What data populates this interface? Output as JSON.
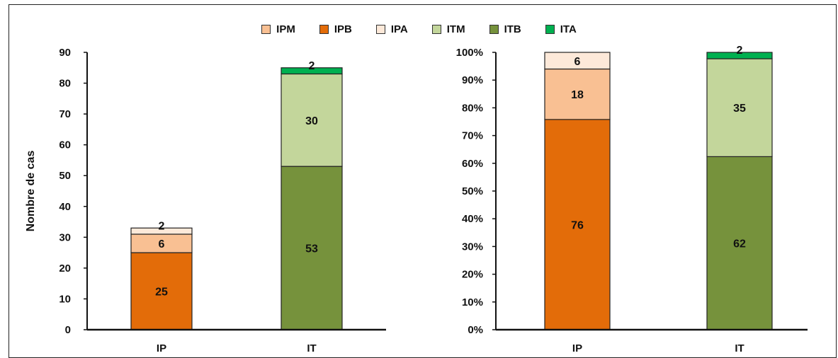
{
  "chart_data": [
    {
      "type": "bar",
      "stacked": true,
      "ylabel": "Nombre de cas",
      "ylim": [
        0,
        90
      ],
      "yticks": [
        "0",
        "10",
        "20",
        "30",
        "40",
        "50",
        "60",
        "70",
        "80",
        "90"
      ],
      "categories": [
        "IP",
        "IT"
      ],
      "series": [
        {
          "name": "IPB",
          "values": [
            25,
            0
          ],
          "labels": [
            "25",
            ""
          ]
        },
        {
          "name": "IPM",
          "values": [
            6,
            0
          ],
          "labels": [
            "6",
            ""
          ]
        },
        {
          "name": "IPA",
          "values": [
            2,
            0
          ],
          "labels": [
            "2",
            ""
          ]
        },
        {
          "name": "ITB",
          "values": [
            0,
            53
          ],
          "labels": [
            "",
            "53"
          ]
        },
        {
          "name": "ITM",
          "values": [
            0,
            30
          ],
          "labels": [
            "",
            "30"
          ]
        },
        {
          "name": "ITA",
          "values": [
            0,
            2
          ],
          "labels": [
            "",
            "2"
          ]
        }
      ]
    },
    {
      "type": "bar",
      "stacked": true,
      "percent": true,
      "ylim": [
        0,
        100
      ],
      "yticks": [
        "0%",
        "10%",
        "20%",
        "30%",
        "40%",
        "50%",
        "60%",
        "70%",
        "80%",
        "90%",
        "100%"
      ],
      "categories": [
        "IP",
        "IT"
      ],
      "series": [
        {
          "name": "IPB",
          "values": [
            75.8,
            0
          ],
          "labels": [
            "76",
            ""
          ]
        },
        {
          "name": "IPM",
          "values": [
            18.2,
            0
          ],
          "labels": [
            "18",
            ""
          ]
        },
        {
          "name": "IPA",
          "values": [
            6.0,
            0
          ],
          "labels": [
            "6",
            ""
          ]
        },
        {
          "name": "ITB",
          "values": [
            0,
            62.4
          ],
          "labels": [
            "",
            "62"
          ]
        },
        {
          "name": "ITM",
          "values": [
            0,
            35.3
          ],
          "labels": [
            "",
            "35"
          ]
        },
        {
          "name": "ITA",
          "values": [
            0,
            2.3
          ],
          "labels": [
            "",
            "2"
          ]
        }
      ]
    }
  ],
  "legend": [
    {
      "name": "IPM",
      "color": "#f9c093"
    },
    {
      "name": "IPB",
      "color": "#e36c09"
    },
    {
      "name": "IPA",
      "color": "#fde9d9"
    },
    {
      "name": "ITM",
      "color": "#c3d69b"
    },
    {
      "name": "ITB",
      "color": "#76923c"
    },
    {
      "name": "ITA",
      "color": "#00b050"
    }
  ]
}
